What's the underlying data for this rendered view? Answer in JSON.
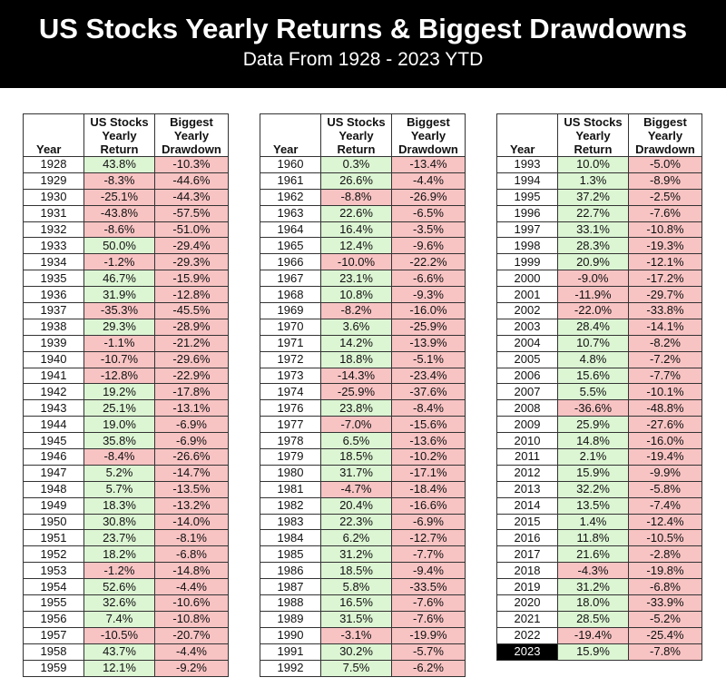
{
  "header": {
    "title": "US Stocks Yearly Returns & Biggest Drawdowns",
    "subtitle": "Data From 1928 - 2023 YTD"
  },
  "colors": {
    "positive": "#dcf5d3",
    "negative": "#f8c3c3",
    "highlight_year": "#000000"
  },
  "chart_data": {
    "type": "table",
    "columns": [
      "Year",
      "US Stocks Yearly Return",
      "Biggest Yearly Drawdown"
    ],
    "tables": [
      {
        "rows": [
          [
            "1928",
            "43.8%",
            "-10.3%"
          ],
          [
            "1929",
            "-8.3%",
            "-44.6%"
          ],
          [
            "1930",
            "-25.1%",
            "-44.3%"
          ],
          [
            "1931",
            "-43.8%",
            "-57.5%"
          ],
          [
            "1932",
            "-8.6%",
            "-51.0%"
          ],
          [
            "1933",
            "50.0%",
            "-29.4%"
          ],
          [
            "1934",
            "-1.2%",
            "-29.3%"
          ],
          [
            "1935",
            "46.7%",
            "-15.9%"
          ],
          [
            "1936",
            "31.9%",
            "-12.8%"
          ],
          [
            "1937",
            "-35.3%",
            "-45.5%"
          ],
          [
            "1938",
            "29.3%",
            "-28.9%"
          ],
          [
            "1939",
            "-1.1%",
            "-21.2%"
          ],
          [
            "1940",
            "-10.7%",
            "-29.6%"
          ],
          [
            "1941",
            "-12.8%",
            "-22.9%"
          ],
          [
            "1942",
            "19.2%",
            "-17.8%"
          ],
          [
            "1943",
            "25.1%",
            "-13.1%"
          ],
          [
            "1944",
            "19.0%",
            "-6.9%"
          ],
          [
            "1945",
            "35.8%",
            "-6.9%"
          ],
          [
            "1946",
            "-8.4%",
            "-26.6%"
          ],
          [
            "1947",
            "5.2%",
            "-14.7%"
          ],
          [
            "1948",
            "5.7%",
            "-13.5%"
          ],
          [
            "1949",
            "18.3%",
            "-13.2%"
          ],
          [
            "1950",
            "30.8%",
            "-14.0%"
          ],
          [
            "1951",
            "23.7%",
            "-8.1%"
          ],
          [
            "1952",
            "18.2%",
            "-6.8%"
          ],
          [
            "1953",
            "-1.2%",
            "-14.8%"
          ],
          [
            "1954",
            "52.6%",
            "-4.4%"
          ],
          [
            "1955",
            "32.6%",
            "-10.6%"
          ],
          [
            "1956",
            "7.4%",
            "-10.8%"
          ],
          [
            "1957",
            "-10.5%",
            "-20.7%"
          ],
          [
            "1958",
            "43.7%",
            "-4.4%"
          ],
          [
            "1959",
            "12.1%",
            "-9.2%"
          ]
        ]
      },
      {
        "rows": [
          [
            "1960",
            "0.3%",
            "-13.4%"
          ],
          [
            "1961",
            "26.6%",
            "-4.4%"
          ],
          [
            "1962",
            "-8.8%",
            "-26.9%"
          ],
          [
            "1963",
            "22.6%",
            "-6.5%"
          ],
          [
            "1964",
            "16.4%",
            "-3.5%"
          ],
          [
            "1965",
            "12.4%",
            "-9.6%"
          ],
          [
            "1966",
            "-10.0%",
            "-22.2%"
          ],
          [
            "1967",
            "23.1%",
            "-6.6%"
          ],
          [
            "1968",
            "10.8%",
            "-9.3%"
          ],
          [
            "1969",
            "-8.2%",
            "-16.0%"
          ],
          [
            "1970",
            "3.6%",
            "-25.9%"
          ],
          [
            "1971",
            "14.2%",
            "-13.9%"
          ],
          [
            "1972",
            "18.8%",
            "-5.1%"
          ],
          [
            "1973",
            "-14.3%",
            "-23.4%"
          ],
          [
            "1974",
            "-25.9%",
            "-37.6%"
          ],
          [
            "1976",
            "23.8%",
            "-8.4%"
          ],
          [
            "1977",
            "-7.0%",
            "-15.6%"
          ],
          [
            "1978",
            "6.5%",
            "-13.6%"
          ],
          [
            "1979",
            "18.5%",
            "-10.2%"
          ],
          [
            "1980",
            "31.7%",
            "-17.1%"
          ],
          [
            "1981",
            "-4.7%",
            "-18.4%"
          ],
          [
            "1982",
            "20.4%",
            "-16.6%"
          ],
          [
            "1983",
            "22.3%",
            "-6.9%"
          ],
          [
            "1984",
            "6.2%",
            "-12.7%"
          ],
          [
            "1985",
            "31.2%",
            "-7.7%"
          ],
          [
            "1986",
            "18.5%",
            "-9.4%"
          ],
          [
            "1987",
            "5.8%",
            "-33.5%"
          ],
          [
            "1988",
            "16.5%",
            "-7.6%"
          ],
          [
            "1989",
            "31.5%",
            "-7.6%"
          ],
          [
            "1990",
            "-3.1%",
            "-19.9%"
          ],
          [
            "1991",
            "30.2%",
            "-5.7%"
          ],
          [
            "1992",
            "7.5%",
            "-6.2%"
          ]
        ]
      },
      {
        "rows": [
          [
            "1993",
            "10.0%",
            "-5.0%"
          ],
          [
            "1994",
            "1.3%",
            "-8.9%"
          ],
          [
            "1995",
            "37.2%",
            "-2.5%"
          ],
          [
            "1996",
            "22.7%",
            "-7.6%"
          ],
          [
            "1997",
            "33.1%",
            "-10.8%"
          ],
          [
            "1998",
            "28.3%",
            "-19.3%"
          ],
          [
            "1999",
            "20.9%",
            "-12.1%"
          ],
          [
            "2000",
            "-9.0%",
            "-17.2%"
          ],
          [
            "2001",
            "-11.9%",
            "-29.7%"
          ],
          [
            "2002",
            "-22.0%",
            "-33.8%"
          ],
          [
            "2003",
            "28.4%",
            "-14.1%"
          ],
          [
            "2004",
            "10.7%",
            "-8.2%"
          ],
          [
            "2005",
            "4.8%",
            "-7.2%"
          ],
          [
            "2006",
            "15.6%",
            "-7.7%"
          ],
          [
            "2007",
            "5.5%",
            "-10.1%"
          ],
          [
            "2008",
            "-36.6%",
            "-48.8%"
          ],
          [
            "2009",
            "25.9%",
            "-27.6%"
          ],
          [
            "2010",
            "14.8%",
            "-16.0%"
          ],
          [
            "2011",
            "2.1%",
            "-19.4%"
          ],
          [
            "2012",
            "15.9%",
            "-9.9%"
          ],
          [
            "2013",
            "32.2%",
            "-5.8%"
          ],
          [
            "2014",
            "13.5%",
            "-7.4%"
          ],
          [
            "2015",
            "1.4%",
            "-12.4%"
          ],
          [
            "2016",
            "11.8%",
            "-10.5%"
          ],
          [
            "2017",
            "21.6%",
            "-2.8%"
          ],
          [
            "2018",
            "-4.3%",
            "-19.8%"
          ],
          [
            "2019",
            "31.2%",
            "-6.8%"
          ],
          [
            "2020",
            "18.0%",
            "-33.9%"
          ],
          [
            "2021",
            "28.5%",
            "-5.2%"
          ],
          [
            "2022",
            "-19.4%",
            "-25.4%"
          ],
          [
            "2023",
            "15.9%",
            "-7.8%"
          ]
        ]
      }
    ],
    "highlighted_year": "2023"
  }
}
